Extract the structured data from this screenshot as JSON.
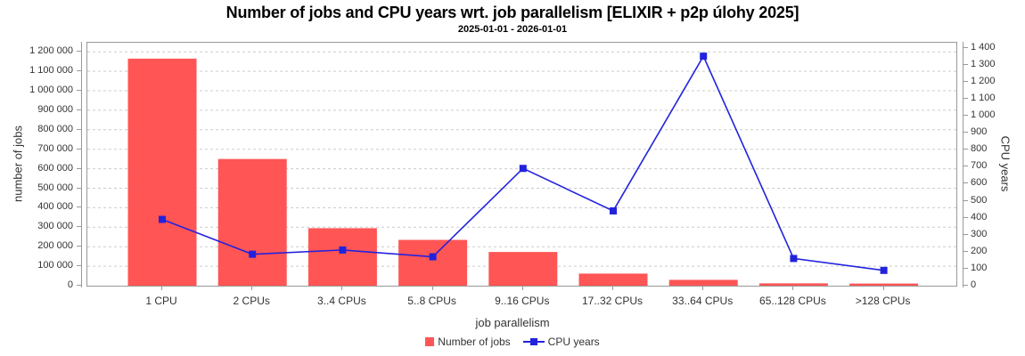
{
  "title": "Number of jobs and CPU years wrt. job parallelism [ELIXIR + p2p úlohy 2025]",
  "subtitle": "2025-01-01 - 2026-01-01",
  "colors": {
    "bar": "#FF5555",
    "line": "#2222DD",
    "grid": "#CCCCCC",
    "axis": "#999999",
    "text": "#333333"
  },
  "chart_data": {
    "type": "bar",
    "subtype": "combo-bar-line-dual-axis",
    "title": "Number of jobs and CPU years wrt. job parallelism [ELIXIR + p2p úlohy 2025]",
    "subtitle": "2025-01-01 - 2026-01-01",
    "xlabel": "job parallelism",
    "categories": [
      "1 CPU",
      "2 CPUs",
      "3..4 CPUs",
      "5..8 CPUs",
      "9..16 CPUs",
      "17..32 CPUs",
      "33..64 CPUs",
      "65..128 CPUs",
      ">128 CPUs"
    ],
    "series": [
      {
        "name": "Number of jobs",
        "type": "bar",
        "axis": "left",
        "color": "#FF5555",
        "values": [
          1165000,
          650000,
          295000,
          235000,
          173000,
          62000,
          30000,
          12000,
          11000
        ]
      },
      {
        "name": "CPU years",
        "type": "line",
        "axis": "right",
        "color": "#2222DD",
        "marker": "square",
        "values": [
          390,
          185,
          210,
          170,
          690,
          440,
          1350,
          160,
          90
        ]
      }
    ],
    "left_axis": {
      "label": "number of jobs",
      "range": [
        0,
        1255000
      ],
      "tick_step": 100000,
      "tick_labels": [
        "0",
        "100 000",
        "200 000",
        "300 000",
        "400 000",
        "500 000",
        "600 000",
        "700 000",
        "800 000",
        "900 000",
        "1 000 000",
        "1 100 000",
        "1 200 000"
      ]
    },
    "right_axis": {
      "label": "CPU years",
      "range": [
        0,
        1440
      ],
      "tick_step": 100,
      "tick_labels": [
        "0",
        "100",
        "200",
        "300",
        "400",
        "500",
        "600",
        "700",
        "800",
        "900",
        "1 000",
        "1 100",
        "1 200",
        "1 300",
        "1 400"
      ]
    },
    "grid": "horizontal-dashed",
    "legend_position": "bottom-center"
  },
  "legend": {
    "items": [
      {
        "label": "Number of jobs",
        "color": "#FF5555",
        "marker": "square"
      },
      {
        "label": "CPU years",
        "color": "#2222DD",
        "marker": "line-square"
      }
    ]
  }
}
